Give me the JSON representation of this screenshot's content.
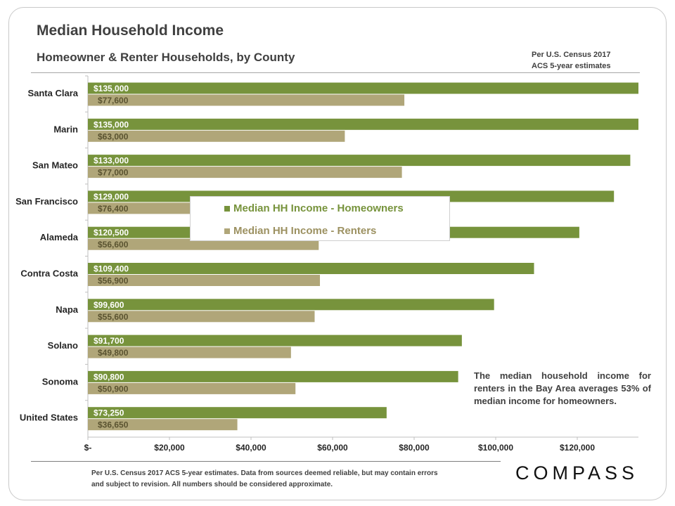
{
  "header": {
    "title": "Median Household Income",
    "subtitle": "Homeowner & Renter Households,  by County",
    "source_line1": "Per U.S. Census 2017",
    "source_line2": "ACS 5-year estimates"
  },
  "chart_data": {
    "type": "bar",
    "orientation": "horizontal",
    "title": "Median Household Income",
    "subtitle": "Homeowner & Renter Households,  by County",
    "xlabel": "",
    "ylabel": "",
    "xlim": [
      0,
      135000
    ],
    "categories": [
      "Santa Clara",
      "Marin",
      "San Mateo",
      "San Francisco",
      "Alameda",
      "Contra Costa",
      "Napa",
      "Solano",
      "Sonoma",
      "United States"
    ],
    "series": [
      {
        "name": "Median HH Income - Homeowners",
        "color": "#77933c",
        "values": [
          135000,
          135000,
          133000,
          129000,
          120500,
          109400,
          99600,
          91700,
          90800,
          73250
        ],
        "labels": [
          "$135,000",
          "$135,000",
          "$133,000",
          "$129,000",
          "$120,500",
          "$109,400",
          "$99,600",
          "$91,700",
          "$90,800",
          "$73,250"
        ]
      },
      {
        "name": "Median HH Income - Renters",
        "color": "#b0a679",
        "values": [
          77600,
          63000,
          77000,
          76400,
          56600,
          56900,
          55600,
          49800,
          50900,
          36650
        ],
        "labels": [
          "$77,600",
          "$63,000",
          "$77,000",
          "$76,400",
          "$56,600",
          "$56,900",
          "$55,600",
          "$49,800",
          "$50,900",
          "$36,650"
        ]
      }
    ],
    "ticks": [
      0,
      20000,
      40000,
      60000,
      80000,
      100000,
      120000
    ],
    "tick_labels": [
      "$-",
      "$20,000",
      "$40,000",
      "$60,000",
      "$80,000",
      "$100,000",
      "$120,000"
    ],
    "legend_position": "center"
  },
  "note": "The median household income for renters in the Bay Area averages 53% of median income for homeowners.",
  "footnote": "Per U.S. Census 2017 ACS 5-year estimates. Data from sources deemed reliable, but may contain errors and subject to revision. All numbers should be considered approximate.",
  "logo": "COMPASS"
}
